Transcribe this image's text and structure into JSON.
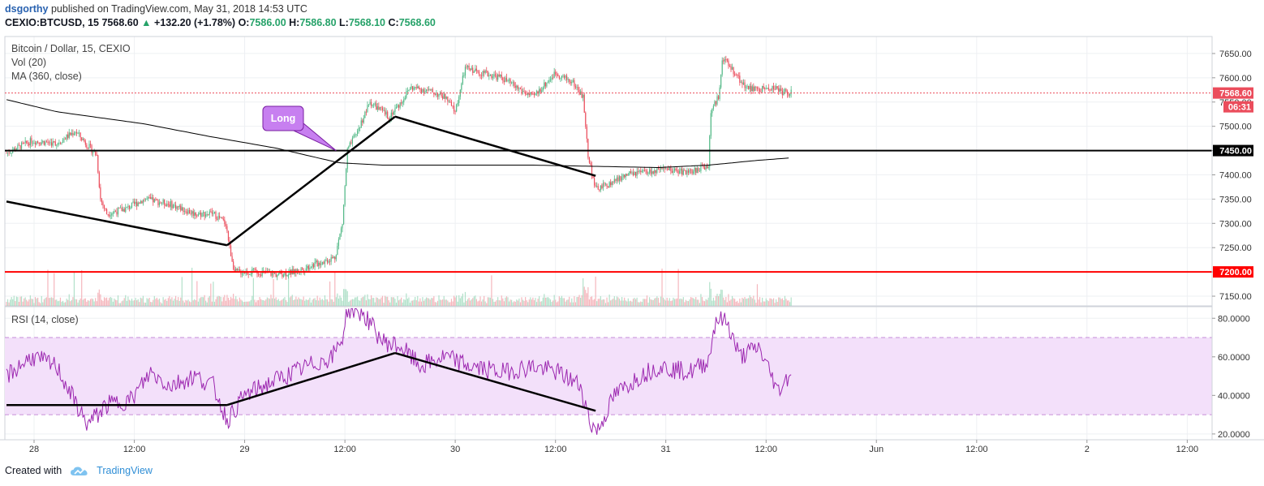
{
  "header": {
    "author": "dsgorthy",
    "published": "published on TradingView.com, May 31, 2018 14:53 UTC",
    "symbol": "CEXIO:BTCUSD, 15",
    "last": "7568.60",
    "change": "+132.20 (+1.78%)",
    "o_label": "O:",
    "o": "7586.00",
    "h_label": "H:",
    "h": "7586.80",
    "l_label": "L:",
    "l": "7568.10",
    "c_label": "C:",
    "c": "7568.60"
  },
  "legend": {
    "title": "Bitcoin / Dollar, 15, CEXIO",
    "vol": "Vol (20)",
    "ma": "MA (360, close)",
    "rsi": "RSI (14, close)"
  },
  "annotation": {
    "label": "Long"
  },
  "price_labels": {
    "last": "7568.60",
    "countdown": "06:31",
    "level_1": "7450.00",
    "level_2": "7200.00"
  },
  "colors": {
    "up": "#53b987",
    "down": "#eb4d5c",
    "resistance": "#000000",
    "support": "#ff0000",
    "rsi_line": "#9c27b0",
    "rsi_band": "#f3e0fa",
    "annotation_bg": "#c77ff0"
  },
  "footer": {
    "created_with": "Created with",
    "brand": "TradingView"
  },
  "chart_data": [
    {
      "type": "candlestick",
      "title": "Bitcoin / Dollar, 15, CEXIO",
      "x_ticks": [
        "28",
        "12:00",
        "29",
        "12:00",
        "30",
        "12:00",
        "31",
        "12:00",
        "Jun",
        "12:00",
        "2",
        "12:00"
      ],
      "y_ticks": [
        7150,
        7200,
        7250,
        7300,
        7350,
        7400,
        7450,
        7500,
        7550,
        7600,
        7650
      ],
      "ylim": [
        7130,
        7685
      ],
      "horizontal_levels": [
        7450,
        7200
      ],
      "close_series_anchors": [
        [
          0,
          7445
        ],
        [
          20,
          7470
        ],
        [
          40,
          7465
        ],
        [
          55,
          7490
        ],
        [
          65,
          7460
        ],
        [
          72,
          7440
        ],
        [
          75,
          7350
        ],
        [
          80,
          7320
        ],
        [
          95,
          7330
        ],
        [
          110,
          7350
        ],
        [
          130,
          7340
        ],
        [
          150,
          7320
        ],
        [
          165,
          7320
        ],
        [
          175,
          7300
        ],
        [
          178,
          7250
        ],
        [
          182,
          7200
        ],
        [
          200,
          7200
        ],
        [
          215,
          7195
        ],
        [
          230,
          7200
        ],
        [
          245,
          7215
        ],
        [
          262,
          7230
        ],
        [
          268,
          7300
        ],
        [
          272,
          7450
        ],
        [
          280,
          7490
        ],
        [
          290,
          7550
        ],
        [
          305,
          7520
        ],
        [
          315,
          7550
        ],
        [
          322,
          7580
        ],
        [
          335,
          7575
        ],
        [
          350,
          7560
        ],
        [
          358,
          7530
        ],
        [
          366,
          7620
        ],
        [
          380,
          7610
        ],
        [
          395,
          7600
        ],
        [
          410,
          7575
        ],
        [
          420,
          7560
        ],
        [
          438,
          7610
        ],
        [
          452,
          7590
        ],
        [
          460,
          7560
        ],
        [
          464,
          7440
        ],
        [
          470,
          7370
        ],
        [
          480,
          7380
        ],
        [
          495,
          7400
        ],
        [
          510,
          7405
        ],
        [
          530,
          7410
        ],
        [
          545,
          7405
        ],
        [
          560,
          7420
        ],
        [
          562,
          7530
        ],
        [
          568,
          7560
        ],
        [
          571,
          7640
        ],
        [
          578,
          7620
        ],
        [
          590,
          7580
        ],
        [
          600,
          7575
        ],
        [
          612,
          7580
        ],
        [
          620,
          7570
        ],
        [
          626,
          7568.6
        ]
      ],
      "ma360_anchors": [
        [
          0,
          7555
        ],
        [
          40,
          7530
        ],
        [
          110,
          7505
        ],
        [
          160,
          7480
        ],
        [
          215,
          7455
        ],
        [
          265,
          7425
        ],
        [
          300,
          7420
        ],
        [
          420,
          7420
        ],
        [
          520,
          7415
        ],
        [
          560,
          7420
        ],
        [
          600,
          7430
        ],
        [
          626,
          7435
        ]
      ],
      "drawn_trendlines": [
        [
          [
            0,
            7345
          ],
          [
            176,
            7255
          ]
        ],
        [
          [
            176,
            7255
          ],
          [
            310,
            7520
          ]
        ],
        [
          [
            310,
            7520
          ],
          [
            470,
            7398
          ]
        ]
      ]
    },
    {
      "type": "line",
      "title": "RSI (14, close)",
      "y_ticks": [
        20,
        40,
        60,
        80
      ],
      "ylim": [
        17,
        86
      ],
      "bands": [
        30,
        70
      ],
      "rsi_anchors": [
        [
          0,
          50
        ],
        [
          20,
          60
        ],
        [
          40,
          55
        ],
        [
          60,
          30
        ],
        [
          65,
          25
        ],
        [
          80,
          35
        ],
        [
          100,
          38
        ],
        [
          115,
          52
        ],
        [
          130,
          45
        ],
        [
          150,
          50
        ],
        [
          165,
          45
        ],
        [
          176,
          27
        ],
        [
          190,
          40
        ],
        [
          215,
          48
        ],
        [
          240,
          55
        ],
        [
          260,
          60
        ],
        [
          268,
          70
        ],
        [
          272,
          85
        ],
        [
          285,
          82
        ],
        [
          300,
          68
        ],
        [
          315,
          65
        ],
        [
          330,
          55
        ],
        [
          350,
          60
        ],
        [
          370,
          55
        ],
        [
          395,
          52
        ],
        [
          420,
          55
        ],
        [
          440,
          52
        ],
        [
          458,
          45
        ],
        [
          466,
          25
        ],
        [
          472,
          22
        ],
        [
          485,
          40
        ],
        [
          505,
          50
        ],
        [
          520,
          55
        ],
        [
          545,
          52
        ],
        [
          560,
          58
        ],
        [
          566,
          80
        ],
        [
          575,
          78
        ],
        [
          585,
          60
        ],
        [
          600,
          65
        ],
        [
          612,
          48
        ],
        [
          615,
          42
        ],
        [
          626,
          52
        ]
      ],
      "drawn_trendlines": [
        [
          [
            0,
            35
          ],
          [
            176,
            35
          ]
        ],
        [
          [
            176,
            35
          ],
          [
            310,
            62
          ]
        ],
        [
          [
            310,
            62
          ],
          [
            470,
            32
          ]
        ]
      ]
    }
  ]
}
